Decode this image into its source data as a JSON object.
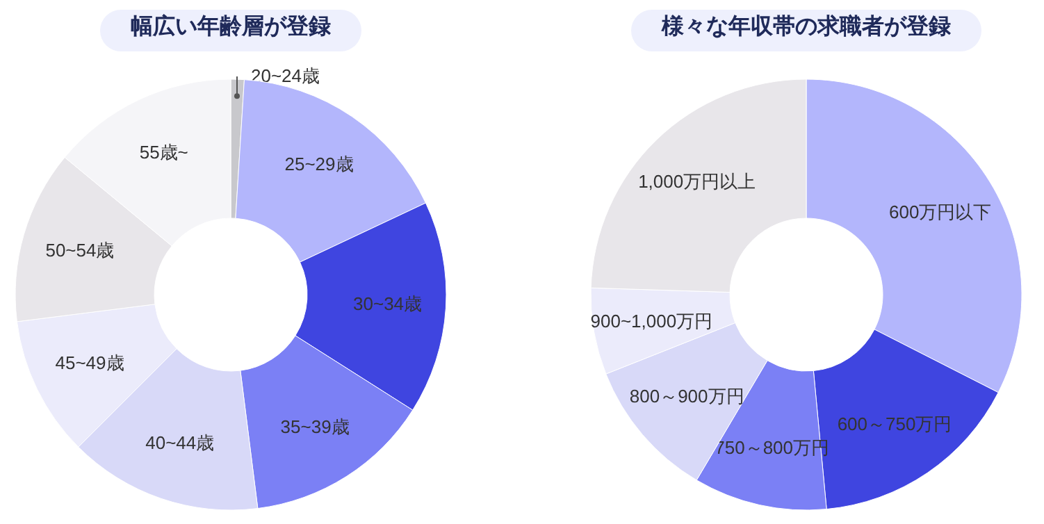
{
  "chart_data": [
    {
      "type": "donut",
      "title": "幅広い年齢層が登録",
      "categories": [
        "20~24歳",
        "25~29歳",
        "30~34歳",
        "35~39歳",
        "40~44歳",
        "45~49歳",
        "50~54歳",
        "55歳~"
      ],
      "values": [
        1,
        17,
        16,
        14,
        14.5,
        10.5,
        13,
        14
      ],
      "colors": [
        "#c8c8cc",
        "#b3b6fc",
        "#3f45e0",
        "#7b80f5",
        "#d8d9f8",
        "#ebebfb",
        "#e8e6ea",
        "#f5f5f8"
      ]
    },
    {
      "type": "donut",
      "title": "様々な年収帯の求職者が登録",
      "categories": [
        "600万円以下",
        "600～750万円",
        "750～800万円",
        "800～900万円",
        "900~1,000万円",
        "1,000万円以上"
      ],
      "values": [
        32.5,
        16,
        10,
        10.5,
        6.5,
        24.5
      ],
      "colors": [
        "#b3b6fc",
        "#3f45e0",
        "#7b80f5",
        "#d8d9f8",
        "#ebebfb",
        "#e8e6ea"
      ]
    }
  ]
}
